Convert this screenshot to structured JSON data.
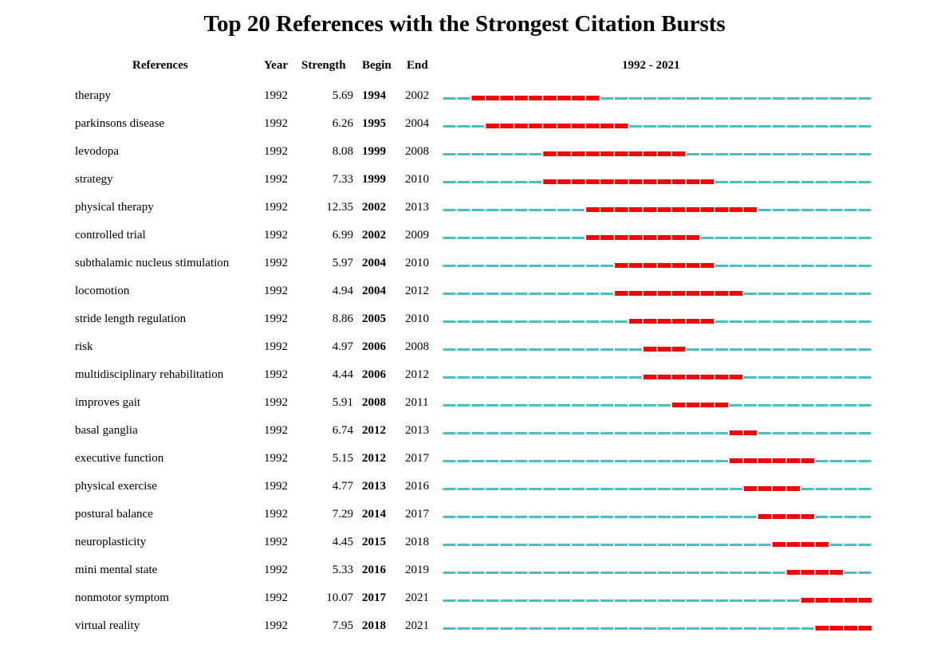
{
  "title": "Top 20 References with the Strongest Citation Bursts",
  "headers": {
    "references": "References",
    "year": "Year",
    "strength": "Strength",
    "begin": "Begin",
    "end": "End",
    "range": "1992 - 2021"
  },
  "colors": {
    "timeline": "#45C1C4",
    "burst": "#FF0000"
  },
  "chart_data": {
    "type": "table",
    "range": [
      1992,
      2021
    ],
    "rows": [
      {
        "reference": "therapy",
        "year": 1992,
        "strength": 5.69,
        "begin": 1994,
        "end": 2002
      },
      {
        "reference": "parkinsons disease",
        "year": 1992,
        "strength": 6.26,
        "begin": 1995,
        "end": 2004
      },
      {
        "reference": "levodopa",
        "year": 1992,
        "strength": 8.08,
        "begin": 1999,
        "end": 2008
      },
      {
        "reference": "strategy",
        "year": 1992,
        "strength": 7.33,
        "begin": 1999,
        "end": 2010
      },
      {
        "reference": "physical therapy",
        "year": 1992,
        "strength": 12.35,
        "begin": 2002,
        "end": 2013
      },
      {
        "reference": "controlled trial",
        "year": 1992,
        "strength": 6.99,
        "begin": 2002,
        "end": 2009
      },
      {
        "reference": "subthalamic nucleus stimulation",
        "year": 1992,
        "strength": 5.97,
        "begin": 2004,
        "end": 2010
      },
      {
        "reference": "locomotion",
        "year": 1992,
        "strength": 4.94,
        "begin": 2004,
        "end": 2012
      },
      {
        "reference": "stride length regulation",
        "year": 1992,
        "strength": 8.86,
        "begin": 2005,
        "end": 2010
      },
      {
        "reference": "risk",
        "year": 1992,
        "strength": 4.97,
        "begin": 2006,
        "end": 2008
      },
      {
        "reference": "multidisciplinary rehabilitation",
        "year": 1992,
        "strength": 4.44,
        "begin": 2006,
        "end": 2012
      },
      {
        "reference": "improves gait",
        "year": 1992,
        "strength": 5.91,
        "begin": 2008,
        "end": 2011
      },
      {
        "reference": "basal ganglia",
        "year": 1992,
        "strength": 6.74,
        "begin": 2012,
        "end": 2013
      },
      {
        "reference": "executive function",
        "year": 1992,
        "strength": 5.15,
        "begin": 2012,
        "end": 2017
      },
      {
        "reference": "physical exercise",
        "year": 1992,
        "strength": 4.77,
        "begin": 2013,
        "end": 2016
      },
      {
        "reference": "postural balance",
        "year": 1992,
        "strength": 7.29,
        "begin": 2014,
        "end": 2017
      },
      {
        "reference": "neuroplasticity",
        "year": 1992,
        "strength": 4.45,
        "begin": 2015,
        "end": 2018
      },
      {
        "reference": "mini mental state",
        "year": 1992,
        "strength": 5.33,
        "begin": 2016,
        "end": 2019
      },
      {
        "reference": "nonmotor symptom",
        "year": 1992,
        "strength": 10.07,
        "begin": 2017,
        "end": 2021
      },
      {
        "reference": "virtual reality",
        "year": 1992,
        "strength": 7.95,
        "begin": 2018,
        "end": 2021
      }
    ]
  }
}
